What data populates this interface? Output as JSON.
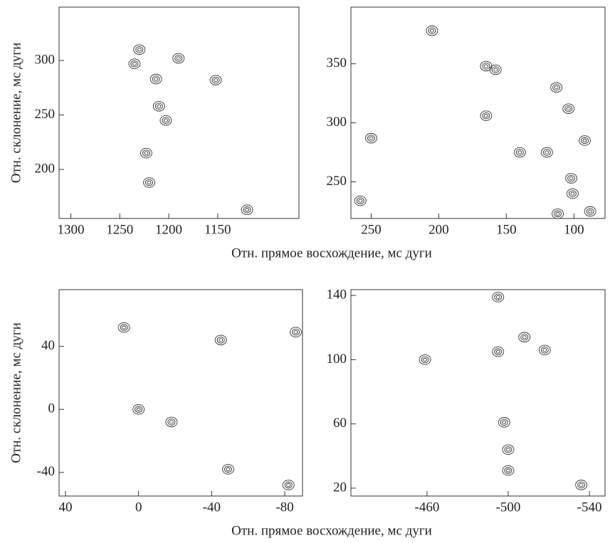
{
  "chart_data": [
    {
      "type": "contour",
      "ylabel": "Отн. склонение, мс дуги",
      "xlim": [
        1312,
        1067
      ],
      "ylim": [
        155,
        349
      ],
      "xticks": [
        1300,
        1250,
        1200,
        1150
      ],
      "yticks": [
        200,
        250,
        300
      ],
      "x": [
        1230,
        1235,
        1190,
        1152,
        1210,
        1203,
        1223,
        1220,
        1120,
        1213
      ],
      "y": [
        310,
        297,
        302,
        282,
        258,
        245,
        215,
        188,
        163,
        283
      ]
    },
    {
      "type": "contour",
      "xlabel": "Отн. прямое восхождение, мс дуги",
      "xlim": [
        265,
        77
      ],
      "ylim": [
        219,
        398
      ],
      "xticks": [
        250,
        200,
        150,
        100
      ],
      "yticks": [
        250,
        300,
        350
      ],
      "x": [
        165,
        158,
        113,
        104,
        165,
        120,
        102,
        101,
        258,
        112,
        205,
        250,
        92,
        140,
        88
      ],
      "y": [
        348,
        345,
        330,
        312,
        306,
        275,
        253,
        240,
        234,
        223,
        378,
        287,
        285,
        275,
        225
      ]
    },
    {
      "type": "contour",
      "ylabel": "Отн. склонение, мс дуги",
      "xlim": [
        43.5,
        -89.7
      ],
      "ylim": [
        -55,
        76
      ],
      "xticks": [
        40,
        0,
        -40,
        -80
      ],
      "yticks": [
        -40,
        0,
        40
      ],
      "x": [
        0,
        -18,
        8,
        -45,
        -82,
        -49,
        -86
      ],
      "y": [
        0,
        -8,
        52,
        44,
        -48,
        -38,
        49
      ]
    },
    {
      "type": "contour",
      "xlabel": "Отн. прямое восхождение, мс дуги",
      "xlim": [
        -422.5,
        -547.7
      ],
      "ylim": [
        15.1,
        143.6
      ],
      "xticks": [
        -460,
        -500,
        -540
      ],
      "yticks": [
        20,
        60,
        100,
        140
      ],
      "x": [
        -495,
        -508,
        -518,
        -459,
        -500,
        -500,
        -498,
        -536,
        -495
      ],
      "y": [
        105,
        114,
        106,
        100,
        44,
        31,
        61,
        22,
        139
      ]
    }
  ]
}
